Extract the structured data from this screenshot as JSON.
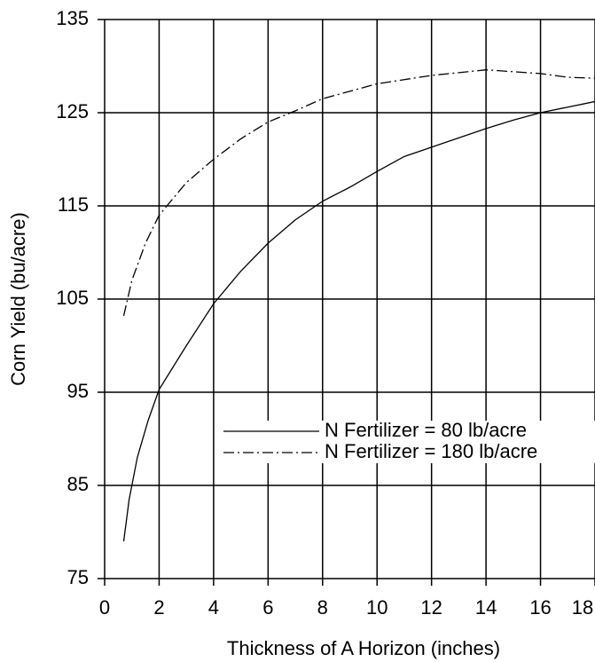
{
  "chart_data": {
    "type": "line",
    "xlabel": "Thickness of A Horizon (inches)",
    "ylabel": "Corn Yield (bu/acre)",
    "xlim": [
      0,
      18
    ],
    "xticks": [
      0,
      2,
      4,
      6,
      8,
      10,
      12,
      14,
      16,
      18
    ],
    "ylim": [
      75,
      135
    ],
    "yticks": [
      75,
      85,
      95,
      105,
      115,
      125,
      135
    ],
    "grid": true,
    "legend": "lower right",
    "series": [
      {
        "name": "N Fertilizer = 80 lb/acre",
        "color": "#000000",
        "linestyle": "solid",
        "x": [
          0.7,
          0.9,
          1.2,
          1.6,
          2,
          3,
          4,
          5,
          6,
          7,
          8,
          9,
          10,
          11,
          12,
          13,
          14,
          15,
          16,
          17,
          18
        ],
        "values": [
          79,
          83.5,
          88,
          92,
          95.3,
          100,
          104.5,
          108,
          111,
          113.5,
          115.5,
          117,
          118.7,
          120.3,
          121.3,
          122.3,
          123.3,
          124.2,
          125,
          125.6,
          126.2
        ]
      },
      {
        "name": "N Fertilizer = 180 lb/acre",
        "color": "#000000",
        "linestyle": "dashdot",
        "x": [
          0.7,
          1,
          1.5,
          2,
          3,
          4,
          5,
          6,
          7,
          8,
          10,
          12,
          14,
          16,
          17,
          18
        ],
        "values": [
          103.2,
          107,
          111,
          114,
          117.5,
          120,
          122.2,
          124,
          125.2,
          126.5,
          128.1,
          129,
          129.6,
          129.2,
          128.8,
          128.7
        ]
      }
    ]
  }
}
